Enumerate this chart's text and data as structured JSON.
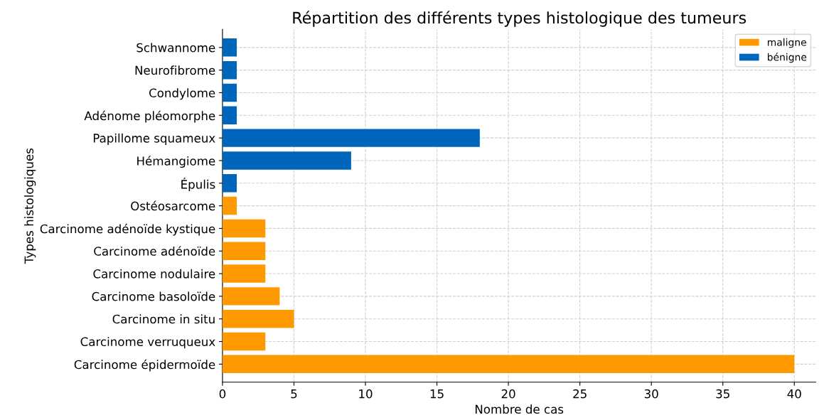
{
  "chart_data": {
    "type": "bar",
    "orientation": "horizontal",
    "title": "Répartition des différents types histologique des tumeurs",
    "xlabel": "Nombre de cas",
    "ylabel": "Types histologiques",
    "categories": [
      "Schwannome",
      "Neurofibrome",
      "Condylome",
      "Adénome pléomorphe",
      "Papillome squameux",
      "Hémangiome",
      "Épulis",
      "Ostéosarcome",
      "Carcinome adénoïde kystique",
      "Carcinome adénoïde",
      "Carcinome nodulaire",
      "Carcinome basoloïde",
      "Carcinome in situ",
      "Carcinome verruqueux",
      "Carcinome épidermoïde"
    ],
    "series": [
      {
        "name": "maligne",
        "color": "#ff9900",
        "values": [
          null,
          null,
          null,
          null,
          null,
          null,
          null,
          1,
          3,
          3,
          3,
          4,
          5,
          3,
          40
        ]
      },
      {
        "name": "bénigne",
        "color": "#0066bb",
        "values": [
          1,
          1,
          1,
          1,
          18,
          9,
          1,
          null,
          null,
          null,
          null,
          null,
          null,
          null,
          null
        ]
      }
    ],
    "xlim": [
      0,
      41.5
    ],
    "xticks": [
      0,
      5,
      10,
      15,
      20,
      25,
      30,
      35,
      40
    ],
    "grid": true,
    "legend": "top right"
  }
}
